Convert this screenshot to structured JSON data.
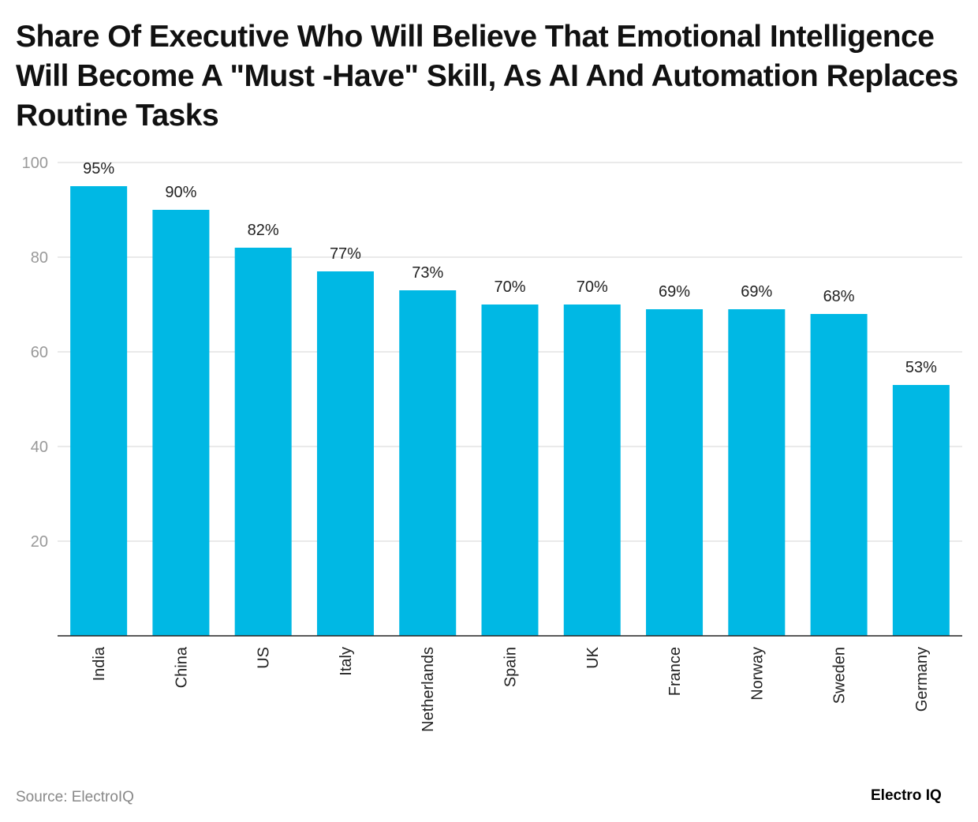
{
  "chart_data": {
    "type": "bar",
    "title": "Share Of Executive Who Will Believe That Emotional Intelligence Will Become A \"Must -Have\" Skill, As AI And Automation Replaces Routine Tasks",
    "categories": [
      "India",
      "China",
      "US",
      "Italy",
      "Netherlands",
      "Spain",
      "UK",
      "France",
      "Norway",
      "Sweden",
      "Germany"
    ],
    "values": [
      95,
      90,
      82,
      77,
      73,
      70,
      70,
      69,
      69,
      68,
      53
    ],
    "data_labels": [
      "95%",
      "90%",
      "82%",
      "77%",
      "73%",
      "70%",
      "70%",
      "69%",
      "69%",
      "68%",
      "53%"
    ],
    "xlabel": "",
    "ylabel": "",
    "ylim": [
      0,
      100
    ],
    "yticks": [
      20,
      40,
      60,
      80,
      100
    ],
    "grid": true,
    "bar_color": "#00b8e4"
  },
  "source": "Source: ElectroIQ",
  "logo": "Electro IQ"
}
